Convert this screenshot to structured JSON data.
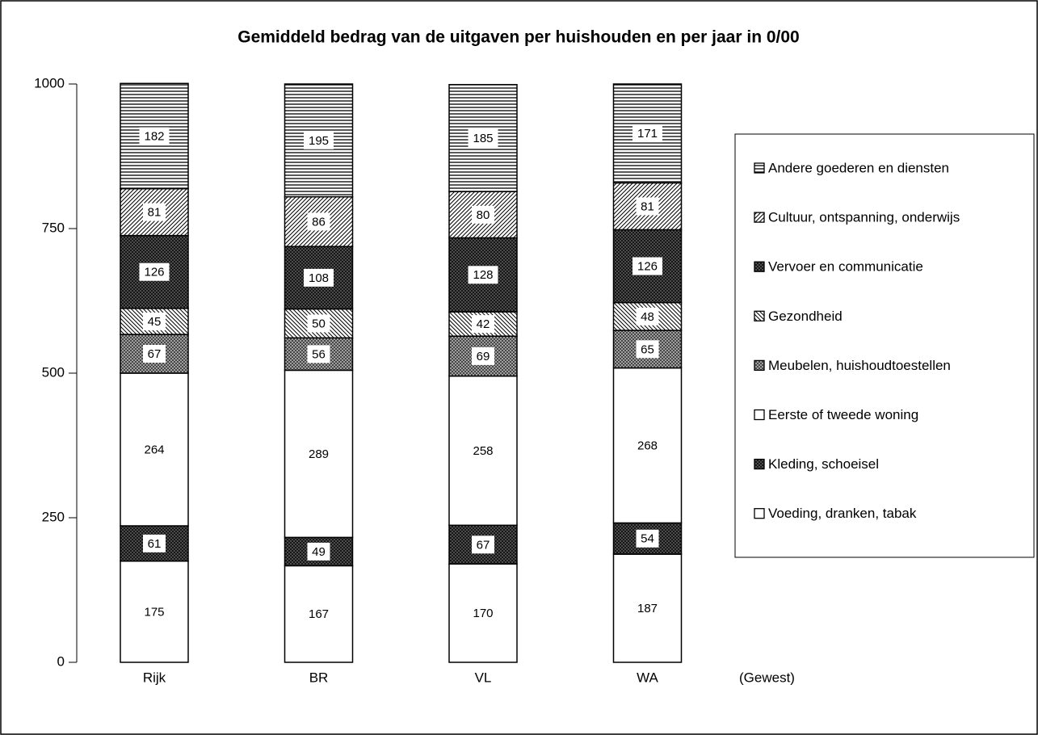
{
  "chart_data": {
    "type": "stacked_bar",
    "title": "Gemiddeld bedrag van de uitgaven per huishouden en per jaar in 0/00",
    "x_label": "(Gewest)",
    "categories": [
      "Rijk",
      "BR",
      "VL",
      "WA"
    ],
    "ylim": [
      0,
      1000
    ],
    "yticks": [
      0,
      250,
      500,
      750,
      1000
    ],
    "legend": "right",
    "series": [
      {
        "name": "Voeding, dranken, tabak",
        "color": "#000000",
        "pattern": "none",
        "values": [
          175,
          167,
          170,
          187
        ]
      },
      {
        "name": "Kleding, schoeisel",
        "color": "#000000",
        "pattern": "dense",
        "values": [
          61,
          49,
          67,
          54
        ]
      },
      {
        "name": "Eerste of tweede woning",
        "color": "#000000",
        "pattern": "none",
        "values": [
          264,
          289,
          258,
          268
        ]
      },
      {
        "name": "Meubelen, huishoudtoestellen",
        "color": "#000000",
        "pattern": "crosshatch",
        "values": [
          67,
          56,
          69,
          65
        ]
      },
      {
        "name": "Gezondheid",
        "color": "#000000",
        "pattern": "backdiagonal",
        "values": [
          45,
          50,
          42,
          48
        ]
      },
      {
        "name": "Vervoer en communicatie",
        "color": "#000000",
        "pattern": "dense",
        "values": [
          126,
          108,
          128,
          126
        ]
      },
      {
        "name": "Cultuur, ontspanning, onderwijs",
        "color": "#000000",
        "pattern": "diagonal",
        "values": [
          81,
          86,
          80,
          81
        ]
      },
      {
        "name": "Andere goederen en diensten",
        "color": "#000000",
        "pattern": "horizontal",
        "values": [
          182,
          195,
          185,
          171
        ]
      }
    ]
  }
}
